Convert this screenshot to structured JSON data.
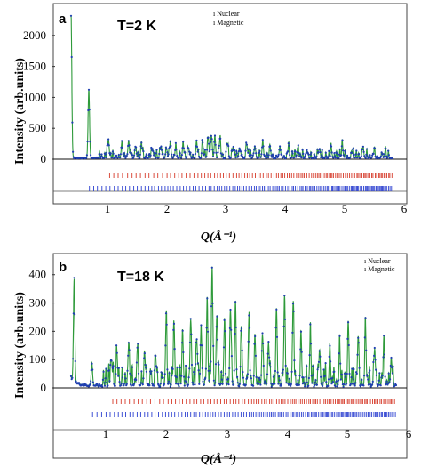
{
  "chart_data": [
    {
      "panel": "a",
      "type": "line",
      "annotation": "T=2 K",
      "ylabel": "Intensity (arb.units)",
      "xlabel": "Q(Å⁻¹)",
      "xlim": [
        0,
        6
      ],
      "ylim": [
        0,
        2400
      ],
      "xticks": [
        1,
        2,
        3,
        4,
        5,
        6
      ],
      "yticks": [
        0,
        500,
        1000,
        1500,
        2000
      ],
      "legend": [
        "Nuclear",
        "Magnetic"
      ],
      "legend_position": "top-right",
      "colors": {
        "observed": "#1f3fb0",
        "calculated": "#2e9a3a",
        "nuclear_ticks": "#d63a2a",
        "magnetic_ticks": "#2b3fd0"
      },
      "series": [
        {
          "x": [
            0.55,
            0.84,
            1.16,
            1.38,
            1.49,
            1.6,
            1.7,
            1.88,
            2.02,
            2.11,
            2.17,
            2.26,
            2.38,
            2.47,
            2.6,
            2.7,
            2.79,
            2.84,
            2.9,
            2.98,
            3.1,
            3.2,
            3.3,
            3.42,
            3.55,
            3.68,
            3.8,
            3.96,
            4.1,
            4.25,
            4.4,
            4.6,
            4.8,
            4.98,
            5.15,
            5.32,
            5.5,
            5.68
          ],
          "values": [
            2300,
            1100,
            300,
            220,
            280,
            180,
            210,
            150,
            190,
            140,
            230,
            160,
            200,
            150,
            240,
            200,
            320,
            360,
            300,
            260,
            220,
            180,
            160,
            210,
            190,
            240,
            170,
            180,
            150,
            140,
            120,
            130,
            110,
            160,
            120,
            110,
            100,
            90
          ]
        }
      ],
      "tick_rows": [
        "Nuclear",
        "Magnetic"
      ],
      "baseline": 20
    },
    {
      "panel": "b",
      "type": "line",
      "annotation": "T=18 K",
      "ylabel": "Intensity (arb.units)",
      "xlabel": "Q(Å⁻¹)",
      "xlim": [
        0,
        6
      ],
      "ylim": [
        0,
        440
      ],
      "xticks": [
        1,
        2,
        3,
        4,
        5,
        6
      ],
      "yticks": [
        0,
        100,
        200,
        300,
        400
      ],
      "legend": [
        "Nuclear",
        "Magnetic"
      ],
      "legend_position": "top-right",
      "colors": {
        "observed": "#1f3fb0",
        "calculated": "#2e9a3a",
        "nuclear_ticks": "#d63a2a",
        "magnetic_ticks": "#2b3fd0"
      },
      "series": [
        {
          "x": [
            0.55,
            0.84,
            1.16,
            1.25,
            1.44,
            1.58,
            1.7,
            1.88,
            2.05,
            2.18,
            2.32,
            2.45,
            2.55,
            2.62,
            2.72,
            2.8,
            2.88,
            3.0,
            3.1,
            3.18,
            3.28,
            3.4,
            3.5,
            3.62,
            3.72,
            3.85,
            3.98,
            4.12,
            4.25,
            4.4,
            4.55,
            4.72,
            4.88,
            5.02,
            5.18,
            5.3,
            5.45,
            5.6,
            5.72
          ],
          "values": [
            360,
            80,
            90,
            100,
            150,
            120,
            110,
            100,
            220,
            200,
            170,
            230,
            160,
            210,
            290,
            420,
            240,
            200,
            260,
            280,
            190,
            230,
            160,
            180,
            150,
            260,
            310,
            280,
            170,
            150,
            120,
            130,
            110,
            210,
            170,
            190,
            130,
            150,
            100
          ],
          "peak_shape": "narrow"
        }
      ],
      "tick_rows": [
        "Nuclear",
        "Magnetic"
      ],
      "baseline": 8
    }
  ]
}
